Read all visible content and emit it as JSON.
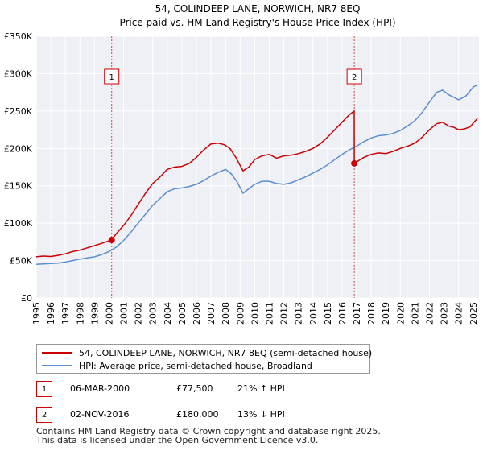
{
  "chart_data": {
    "type": "line",
    "title": "54, COLINDEEP LANE, NORWICH, NR7 8EQ",
    "subtitle": "Price paid vs. HM Land Registry's House Price Index (HPI)",
    "xlim": [
      1995,
      2025.4
    ],
    "ylim": [
      0,
      350000
    ],
    "y_ticks": [
      0,
      50000,
      100000,
      150000,
      200000,
      250000,
      300000,
      350000
    ],
    "y_tick_labels": [
      "£0",
      "£50K",
      "£100K",
      "£150K",
      "£200K",
      "£250K",
      "£300K",
      "£350K"
    ],
    "x_ticks": [
      1995,
      1996,
      1997,
      1998,
      1999,
      2000,
      2001,
      2002,
      2003,
      2004,
      2005,
      2006,
      2007,
      2008,
      2009,
      2010,
      2011,
      2012,
      2013,
      2014,
      2015,
      2016,
      2017,
      2018,
      2019,
      2020,
      2021,
      2022,
      2023,
      2024,
      2025
    ],
    "x_tick_labels": [
      "1995",
      "1996",
      "1997",
      "1998",
      "1999",
      "2000",
      "2001",
      "2002",
      "2003",
      "2004",
      "2005",
      "2006",
      "2007",
      "2008",
      "2009",
      "2010",
      "2011",
      "2012",
      "2013",
      "2014",
      "2015",
      "2016",
      "2017",
      "2018",
      "2019",
      "2020",
      "2021",
      "2022",
      "2023",
      "2024",
      "2025"
    ],
    "grid": true,
    "series": [
      {
        "name": "54, COLINDEEP LANE, NORWICH, NR7 8EQ (semi-detached house)",
        "color": "#cc0000",
        "x": [
          1995,
          1995.5,
          1996,
          1996.5,
          1997,
          1997.5,
          1998,
          1998.5,
          1999,
          1999.5,
          2000.18,
          2000.5,
          2001,
          2001.5,
          2002,
          2002.5,
          2003,
          2003.5,
          2004,
          2004.5,
          2005,
          2005.5,
          2006,
          2006.5,
          2007,
          2007.5,
          2007.9,
          2008.3,
          2008.7,
          2009.2,
          2009.6,
          2010,
          2010.5,
          2011,
          2011.5,
          2012,
          2012.5,
          2013,
          2013.5,
          2014,
          2014.5,
          2015,
          2015.5,
          2016,
          2016.5,
          2016.83,
          2016.84,
          2017,
          2017.5,
          2018,
          2018.5,
          2019,
          2019.5,
          2020,
          2020.5,
          2021,
          2021.5,
          2022,
          2022.5,
          2022.9,
          2023.3,
          2023.7,
          2024,
          2024.4,
          2024.8,
          2025.1,
          2025.3
        ],
        "values": [
          55000,
          56000,
          55500,
          57000,
          59000,
          62000,
          64000,
          67000,
          70000,
          73000,
          77500,
          86000,
          97000,
          110000,
          125000,
          140000,
          153000,
          162000,
          172000,
          175000,
          176000,
          180000,
          188000,
          198000,
          206000,
          207000,
          205000,
          200000,
          188000,
          170000,
          175000,
          185000,
          190000,
          192000,
          187000,
          190000,
          191000,
          193000,
          196000,
          200000,
          206000,
          215000,
          225000,
          235000,
          245000,
          250000,
          180000,
          182000,
          188000,
          192000,
          194000,
          193000,
          196000,
          200000,
          203000,
          207000,
          215000,
          225000,
          233000,
          235000,
          230000,
          228000,
          225000,
          226000,
          229000,
          236000,
          240000
        ]
      },
      {
        "name": "HPI: Average price, semi-detached house, Broadland",
        "color": "#5b8fd0",
        "x": [
          1995,
          1995.5,
          1996,
          1996.5,
          1997,
          1997.5,
          1998,
          1998.5,
          1999,
          1999.5,
          2000,
          2000.5,
          2001,
          2001.5,
          2002,
          2002.5,
          2003,
          2003.5,
          2004,
          2004.5,
          2005,
          2005.5,
          2006,
          2006.5,
          2007,
          2007.5,
          2008,
          2008.4,
          2008.8,
          2009.2,
          2009.6,
          2010,
          2010.5,
          2011,
          2011.5,
          2012,
          2012.5,
          2013,
          2013.5,
          2014,
          2014.5,
          2015,
          2015.5,
          2016,
          2016.5,
          2017,
          2017.5,
          2018,
          2018.5,
          2019,
          2019.5,
          2020,
          2020.5,
          2021,
          2021.5,
          2022,
          2022.5,
          2022.9,
          2023.3,
          2023.7,
          2024,
          2024.5,
          2025,
          2025.3
        ],
        "values": [
          45000,
          45500,
          46000,
          46500,
          48000,
          50000,
          52000,
          53500,
          55000,
          58000,
          62000,
          68000,
          77000,
          88000,
          100000,
          112000,
          124000,
          133000,
          142000,
          146000,
          147000,
          149000,
          152000,
          157000,
          163000,
          168000,
          172000,
          166000,
          155000,
          140000,
          146000,
          152000,
          156000,
          156000,
          153000,
          152000,
          154000,
          158000,
          162000,
          167000,
          172000,
          178000,
          185000,
          192000,
          198000,
          203000,
          209000,
          214000,
          217000,
          218000,
          220000,
          224000,
          230000,
          237000,
          248000,
          262000,
          275000,
          278000,
          272000,
          268000,
          265000,
          270000,
          282000,
          285000
        ]
      }
    ],
    "annotations": [
      {
        "label": "1",
        "x": 2000.18,
        "y": 77500
      },
      {
        "label": "2",
        "x": 2016.84,
        "y": 180000
      }
    ]
  },
  "legend": {
    "property_label": "54, COLINDEEP LANE, NORWICH, NR7 8EQ (semi-detached house)",
    "hpi_label": "HPI: Average price, semi-detached house, Broadland",
    "property_color": "#cc0000",
    "hpi_color": "#5b8fd0"
  },
  "sales": [
    {
      "num": "1",
      "date": "06-MAR-2000",
      "price": "£77,500",
      "hpi": "21% ↑ HPI"
    },
    {
      "num": "2",
      "date": "02-NOV-2016",
      "price": "£180,000",
      "hpi": "13% ↓ HPI"
    }
  ],
  "footer": {
    "line1": "Contains HM Land Registry data © Crown copyright and database right 2025.",
    "line2": "This data is licensed under the Open Government Licence v3.0."
  }
}
